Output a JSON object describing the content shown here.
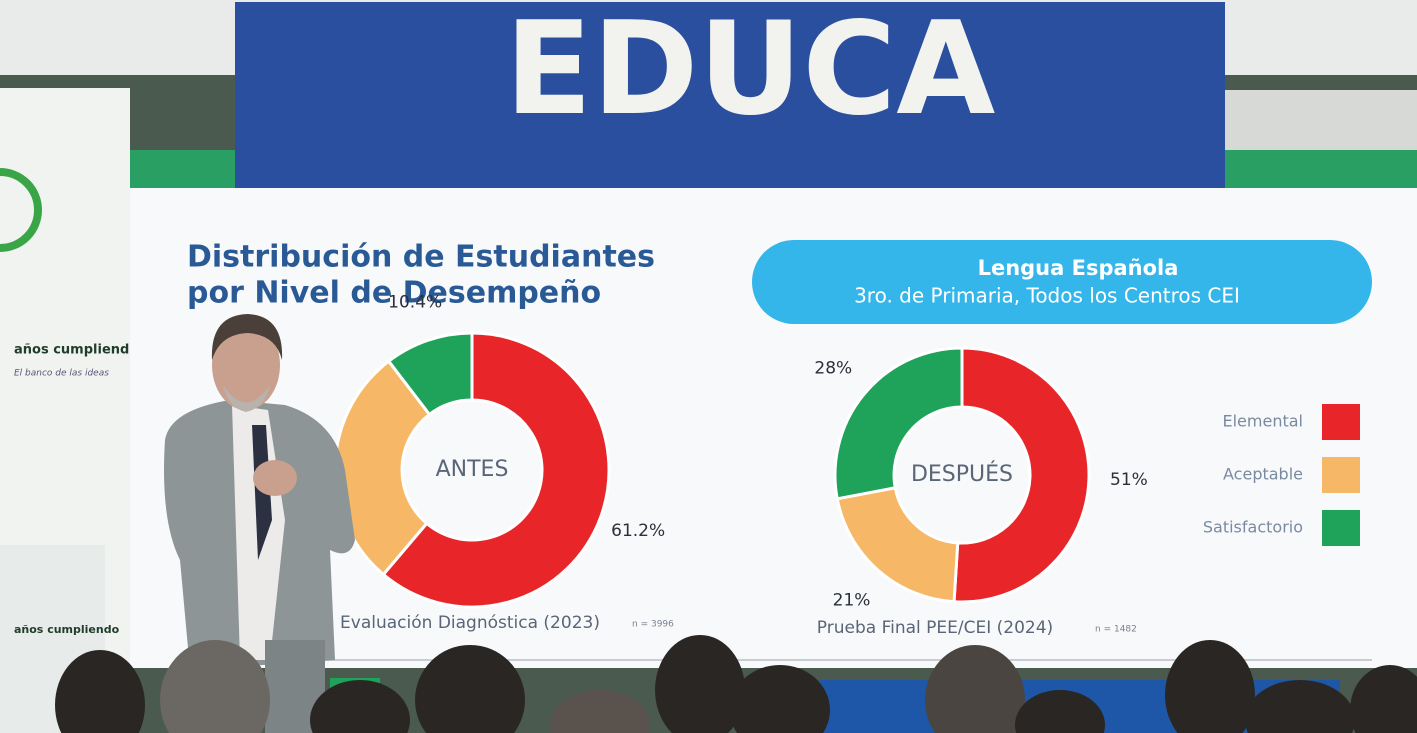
{
  "banner": "EDUCA",
  "side_logo": {
    "tagline": "años cumpliendo",
    "motto": "El banco de las ideas"
  },
  "slide": {
    "title_lines": [
      "Distribución de Estudiantes",
      "por Nivel de Desempeño"
    ],
    "subject": "Lengua Española",
    "scope": "3ro. de Primaria, Todos los Centros CEI"
  },
  "chart_data": [
    {
      "type": "pie",
      "donut": true,
      "center_label": "ANTES",
      "caption": "Evaluación Diagnóstica (2023)",
      "sample": "n = 3996",
      "categories": [
        "Elemental",
        "Aceptable",
        "Satisfactorio"
      ],
      "values": [
        61.2,
        28.4,
        10.4
      ],
      "value_labels": [
        "61.2%",
        null,
        "10.4%"
      ],
      "colors": [
        "#e8262a",
        "#f6b866",
        "#1fa35a"
      ]
    },
    {
      "type": "pie",
      "donut": true,
      "center_label": "DESPUÉS",
      "caption": "Prueba Final PEE/CEI (2024)",
      "sample": "n = 1482",
      "categories": [
        "Elemental",
        "Aceptable",
        "Satisfactorio"
      ],
      "values": [
        51,
        21,
        28
      ],
      "value_labels": [
        "51%",
        "21%",
        "28%"
      ],
      "colors": [
        "#e8262a",
        "#f6b866",
        "#1fa35a"
      ],
      "legend": "right"
    }
  ]
}
